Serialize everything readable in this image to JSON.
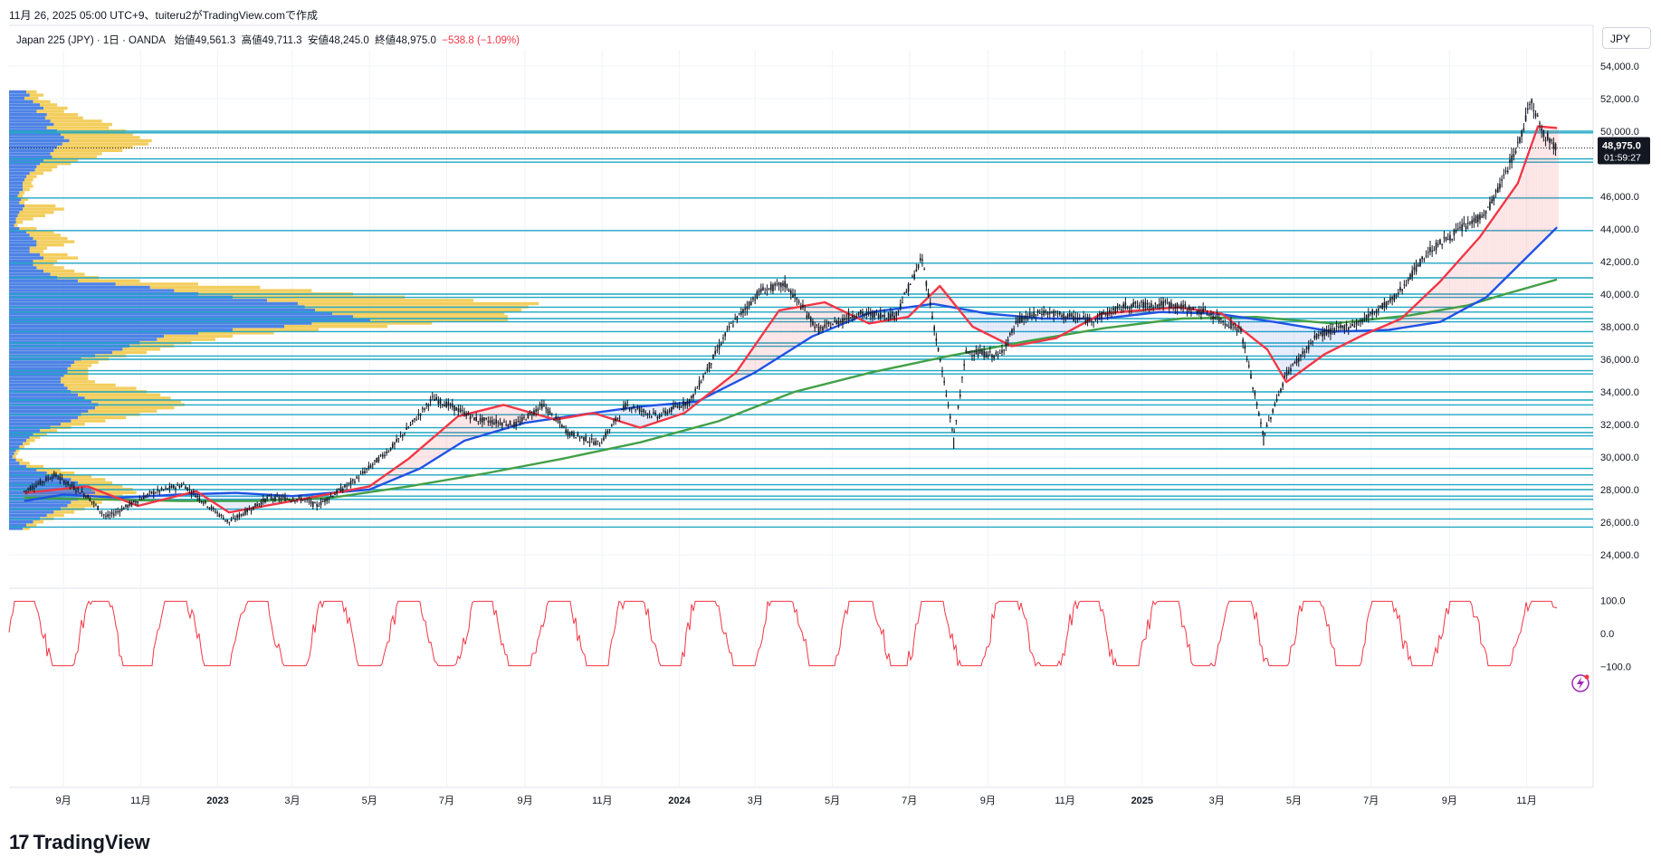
{
  "header": {
    "credit": "11月 26, 2025 05:00 UTC+9、tuiteru2がTradingView.comで作成",
    "legend": {
      "symbol": "Japan 225 (JPY) · 1日 · OANDA",
      "open": "始値49,561.3",
      "high": "高値49,711.3",
      "low": "安値48,245.0",
      "close": "終値48,975.0",
      "change": "−538.8 (−1.09%)"
    },
    "currency": "JPY"
  },
  "price_tag": {
    "price": "48,975.0",
    "countdown": "01:59:27"
  },
  "footer": {
    "brand": "TradingView"
  },
  "colors": {
    "up": "#131722",
    "ma_short": "#f23645",
    "ma_mid": "#1e53e5",
    "ma_long": "#43a047",
    "level_line": "#1ea7c4",
    "vp_blue": "#2f6de1",
    "vp_yellow": "#f2c94c",
    "osc": "#f23645",
    "fill_red": "rgba(242,54,69,0.12)",
    "fill_blue": "rgba(30,83,229,0.10)"
  },
  "chart_data": {
    "type": "line",
    "title": "",
    "price_axis": {
      "ylim": [
        22500,
        55000
      ],
      "ticks": [
        "54,000.0",
        "52,000.0",
        "50,000.0",
        "46,000.0",
        "44,000.0",
        "42,000.0",
        "40,000.0",
        "38,000.0",
        "36,000.0",
        "34,000.0",
        "32,000.0",
        "30,000.0",
        "28,000.0",
        "26,000.0",
        "24,000.0"
      ],
      "tick_values": [
        54000,
        52000,
        50000,
        46000,
        44000,
        42000,
        40000,
        38000,
        36000,
        34000,
        32000,
        30000,
        28000,
        26000,
        24000
      ]
    },
    "time_axis": {
      "labels": [
        "9月",
        "11月",
        "2023",
        "3月",
        "5月",
        "7月",
        "9月",
        "11月",
        "2024",
        "3月",
        "5月",
        "7月",
        "9月",
        "11月",
        "2025",
        "3月",
        "5月",
        "7月",
        "9月",
        "11月"
      ],
      "label_dates": [
        "2022-09",
        "2022-11",
        "2023-01",
        "2023-03",
        "2023-05",
        "2023-07",
        "2023-09",
        "2023-11",
        "2024-01",
        "2024-03",
        "2024-05",
        "2024-07",
        "2024-09",
        "2024-11",
        "2025-01",
        "2025-03",
        "2025-05",
        "2025-07",
        "2025-09",
        "2025-11"
      ]
    },
    "price_path": {
      "dates": [
        "2022-08-01",
        "2022-08-25",
        "2022-09-20",
        "2022-10-05",
        "2022-11-10",
        "2022-12-05",
        "2022-12-28",
        "2023-01-10",
        "2023-02-10",
        "2023-03-10",
        "2023-03-20",
        "2023-04-20",
        "2023-05-20",
        "2023-06-20",
        "2023-07-05",
        "2023-07-25",
        "2023-08-25",
        "2023-09-15",
        "2023-10-05",
        "2023-10-30",
        "2023-11-20",
        "2023-12-15",
        "2024-01-10",
        "2024-02-10",
        "2024-03-05",
        "2024-03-25",
        "2024-04-20",
        "2024-05-20",
        "2024-06-20",
        "2024-07-11",
        "2024-08-05",
        "2024-08-15",
        "2024-09-10",
        "2024-09-25",
        "2024-10-15",
        "2024-11-20",
        "2024-12-20",
        "2025-01-20",
        "2025-02-20",
        "2025-03-20",
        "2025-04-07",
        "2025-04-25",
        "2025-05-20",
        "2025-06-20",
        "2025-07-20",
        "2025-08-15",
        "2025-09-10",
        "2025-09-30",
        "2025-10-10",
        "2025-10-27",
        "2025-11-04",
        "2025-11-15",
        "2025-11-25"
      ],
      "values": [
        27900,
        28900,
        27600,
        26300,
        27800,
        28300,
        26800,
        26000,
        27500,
        27400,
        27000,
        28600,
        30700,
        33600,
        33100,
        32300,
        32000,
        33200,
        31500,
        30800,
        33200,
        32500,
        33500,
        38000,
        40200,
        40600,
        37800,
        38800,
        38700,
        42200,
        31200,
        36500,
        36200,
        38400,
        38900,
        38400,
        39300,
        39400,
        38900,
        37800,
        31300,
        35100,
        37500,
        38200,
        39800,
        42600,
        44000,
        45000,
        46500,
        49500,
        52000,
        49800,
        48975
      ]
    },
    "series": [
      {
        "name": "",
        "color": "#f23645",
        "dates": [
          "2022-08-01",
          "2022-09-20",
          "2022-10-30",
          "2022-12-15",
          "2023-01-10",
          "2023-03-01",
          "2023-05-01",
          "2023-06-01",
          "2023-07-10",
          "2023-08-15",
          "2023-09-25",
          "2023-10-25",
          "2023-12-01",
          "2024-01-05",
          "2024-02-15",
          "2024-03-20",
          "2024-04-25",
          "2024-05-30",
          "2024-06-30",
          "2024-07-25",
          "2024-08-20",
          "2024-09-20",
          "2024-10-25",
          "2024-11-30",
          "2024-12-30",
          "2025-01-30",
          "2025-03-05",
          "2025-04-10",
          "2025-04-25",
          "2025-05-25",
          "2025-06-25",
          "2025-07-25",
          "2025-08-25",
          "2025-09-25",
          "2025-10-25",
          "2025-11-10",
          "2025-11-25"
        ],
        "values": [
          27800,
          28200,
          27000,
          27900,
          26600,
          27300,
          28200,
          29900,
          32500,
          33200,
          32300,
          32700,
          31800,
          32700,
          35200,
          39000,
          39500,
          38200,
          38600,
          40500,
          38000,
          36800,
          37300,
          38800,
          39000,
          39200,
          38800,
          36600,
          34600,
          36300,
          37500,
          38500,
          40800,
          43500,
          46800,
          50300,
          50200
        ]
      },
      {
        "name": "",
        "color": "#1e53e5",
        "dates": [
          "2022-08-01",
          "2022-09-01",
          "2022-10-15",
          "2022-12-01",
          "2023-01-15",
          "2023-03-01",
          "2023-05-01",
          "2023-06-10",
          "2023-07-15",
          "2023-09-01",
          "2023-10-15",
          "2023-12-01",
          "2024-01-15",
          "2024-03-01",
          "2024-04-15",
          "2024-06-01",
          "2024-07-20",
          "2024-09-01",
          "2024-10-15",
          "2024-12-01",
          "2025-01-15",
          "2025-03-01",
          "2025-04-15",
          "2025-06-01",
          "2025-07-15",
          "2025-08-25",
          "2025-09-30",
          "2025-11-25"
        ],
        "values": [
          27300,
          27700,
          27500,
          27700,
          27800,
          27600,
          28000,
          29300,
          31000,
          32100,
          32600,
          33100,
          33400,
          35200,
          37400,
          38900,
          39400,
          38800,
          38500,
          38500,
          38900,
          38800,
          38300,
          37700,
          37800,
          38300,
          39800,
          44100
        ]
      },
      {
        "name": "",
        "color": "#43a047",
        "dates": [
          "2022-08-01",
          "2022-10-01",
          "2022-12-01",
          "2023-02-01",
          "2023-04-01",
          "2023-06-01",
          "2023-08-01",
          "2023-10-01",
          "2023-12-01",
          "2024-02-01",
          "2024-04-01",
          "2024-06-01",
          "2024-08-01",
          "2024-10-01",
          "2024-12-01",
          "2025-02-01",
          "2025-04-01",
          "2025-06-01",
          "2025-08-01",
          "2025-09-15",
          "2025-10-15",
          "2025-11-25"
        ],
        "values": [
          27500,
          27400,
          27300,
          27300,
          27500,
          28200,
          29000,
          29900,
          30900,
          32200,
          34000,
          35200,
          36200,
          37100,
          37900,
          38500,
          38600,
          38200,
          38700,
          39300,
          40000,
          40900
        ]
      }
    ],
    "horizontal_levels": [
      50000,
      49900,
      48300,
      48100,
      45900,
      43900,
      41900,
      41000,
      40000,
      39800,
      39200,
      38900,
      38500,
      38300,
      37700,
      37000,
      36800,
      36200,
      36000,
      35300,
      35100,
      34000,
      33500,
      33200,
      32600,
      31800,
      31500,
      31300,
      30500,
      29300,
      28900,
      28300,
      28000,
      27600,
      27400,
      26800,
      26200,
      25700
    ],
    "volume_profile": {
      "price_bins": [
        52400,
        52200,
        52000,
        51800,
        51600,
        51400,
        51200,
        51000,
        50800,
        50600,
        50400,
        50200,
        50000,
        49800,
        49600,
        49400,
        49200,
        49000,
        48800,
        48600,
        48400,
        48200,
        48000,
        47800,
        47600,
        47400,
        47200,
        47000,
        46800,
        46600,
        46400,
        46200,
        46000,
        45800,
        45600,
        45400,
        45200,
        45000,
        44800,
        44600,
        44400,
        44200,
        44000,
        43800,
        43600,
        43400,
        43200,
        43000,
        42800,
        42600,
        42400,
        42200,
        42000,
        41800,
        41600,
        41400,
        41200,
        41000,
        40800,
        40600,
        40400,
        40200,
        40000,
        39800,
        39600,
        39400,
        39200,
        39000,
        38800,
        38600,
        38400,
        38200,
        38000,
        37800,
        37600,
        37400,
        37200,
        37000,
        36800,
        36600,
        36400,
        36200,
        36000,
        35800,
        35600,
        35400,
        35200,
        35000,
        34800,
        34600,
        34400,
        34200,
        34000,
        33800,
        33600,
        33400,
        33200,
        33000,
        32800,
        32600,
        32400,
        32200,
        32000,
        31800,
        31600,
        31400,
        31200,
        31000,
        30800,
        30600,
        30400,
        30200,
        30000,
        29800,
        29600,
        29400,
        29200,
        29000,
        28800,
        28600,
        28400,
        28200,
        28000,
        27800,
        27600,
        27400,
        27200,
        27000,
        26800,
        26600,
        26400,
        26200,
        26000,
        25800,
        25600
      ],
      "up": [
        10,
        12,
        9,
        14,
        18,
        20,
        16,
        22,
        21,
        24,
        26,
        22,
        28,
        30,
        32,
        35,
        31,
        28,
        26,
        24,
        25,
        20,
        18,
        16,
        15,
        12,
        10,
        9,
        8,
        8,
        8,
        6,
        5,
        7,
        6,
        9,
        8,
        6,
        5,
        4,
        4,
        3,
        6,
        10,
        12,
        14,
        16,
        16,
        12,
        12,
        18,
        20,
        14,
        14,
        16,
        20,
        24,
        28,
        40,
        62,
        82,
        96,
        110,
        130,
        150,
        168,
        172,
        178,
        188,
        200,
        210,
        176,
        160,
        130,
        110,
        90,
        86,
        76,
        70,
        66,
        60,
        50,
        42,
        38,
        36,
        34,
        34,
        32,
        30,
        30,
        32,
        34,
        36,
        40,
        44,
        48,
        52,
        50,
        46,
        42,
        40,
        36,
        30,
        24,
        18,
        14,
        12,
        10,
        8,
        6,
        4,
        3,
        2,
        4,
        6,
        10,
        16,
        22,
        30,
        36,
        40,
        44,
        48,
        50,
        44,
        40,
        36,
        34,
        30,
        26,
        22,
        18,
        14,
        10,
        8
      ],
      "down": [
        6,
        8,
        8,
        10,
        10,
        14,
        16,
        18,
        22,
        30,
        34,
        36,
        40,
        42,
        44,
        48,
        50,
        44,
        40,
        30,
        26,
        20,
        18,
        12,
        10,
        8,
        6,
        5,
        5,
        6,
        4,
        3,
        3,
        4,
        3,
        18,
        24,
        20,
        16,
        10,
        4,
        2,
        10,
        16,
        18,
        20,
        22,
        16,
        10,
        8,
        16,
        20,
        14,
        12,
        16,
        18,
        20,
        24,
        36,
        48,
        64,
        80,
        90,
        100,
        120,
        140,
        130,
        120,
        100,
        90,
        80,
        70,
        60,
        50,
        44,
        40,
        34,
        30,
        26,
        22,
        20,
        18,
        16,
        14,
        12,
        12,
        12,
        14,
        16,
        20,
        30,
        40,
        44,
        48,
        50,
        52,
        50,
        46,
        40,
        34,
        28,
        20,
        14,
        12,
        10,
        8,
        6,
        5,
        4,
        3,
        2,
        2,
        2,
        4,
        6,
        10,
        14,
        16,
        18,
        20,
        20,
        22,
        24,
        24,
        22,
        20,
        18,
        16,
        14,
        12,
        10,
        8,
        6,
        6,
        4
      ],
      "poc_price": 38500
    },
    "oscillator": {
      "ylim": [
        -110,
        110
      ],
      "ticks": [
        "100.0",
        "0.0",
        "−100.0"
      ],
      "tick_values": [
        100,
        0,
        -100
      ],
      "color": "#f23645"
    }
  }
}
